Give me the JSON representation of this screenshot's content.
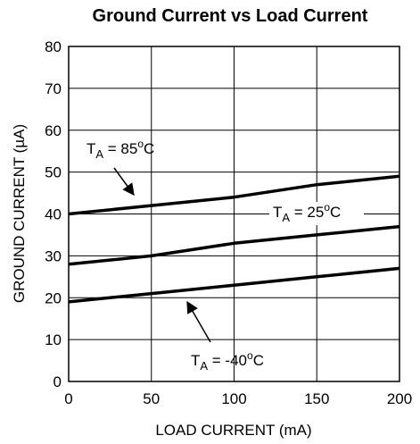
{
  "chart_data": {
    "type": "line",
    "title": "Ground Current vs Load Current",
    "xlabel": "LOAD CURRENT (mA)",
    "ylabel": "GROUND CURRENT (µA)",
    "xlim": [
      0,
      200
    ],
    "ylim": [
      0,
      80
    ],
    "xticks": [
      0,
      50,
      100,
      150,
      200
    ],
    "yticks": [
      0,
      10,
      20,
      30,
      40,
      50,
      60,
      70,
      80
    ],
    "grid": true,
    "legend": "none",
    "series": [
      {
        "name": "85°C",
        "x": [
          0,
          50,
          100,
          150,
          200
        ],
        "y": [
          40,
          42,
          44,
          47,
          49
        ]
      },
      {
        "name": "25°C",
        "x": [
          0,
          50,
          100,
          150,
          200
        ],
        "y": [
          28,
          30,
          33,
          35,
          37
        ]
      },
      {
        "name": "-40°C",
        "x": [
          0,
          50,
          100,
          150,
          200
        ],
        "y": [
          19,
          21,
          23,
          25,
          27
        ]
      }
    ],
    "annotations": [
      {
        "base": "T",
        "sub": "A",
        "rest": " = 85",
        "sup": "o",
        "unit": "C"
      },
      {
        "base": "T",
        "sub": "A",
        "rest": " = 25",
        "sup": "o",
        "unit": "C"
      },
      {
        "base": "T",
        "sub": "A",
        "rest": " = -40",
        "sup": "o",
        "unit": "C"
      }
    ]
  }
}
